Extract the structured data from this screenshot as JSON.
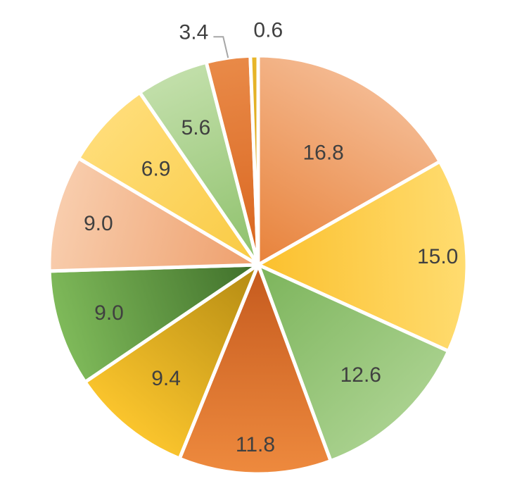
{
  "chart_data": {
    "type": "pie",
    "title": "",
    "legend": "none",
    "start_angle_deg": 0,
    "direction": "clockwise",
    "slices": [
      {
        "value": 16.8,
        "label": "16.8",
        "color_start": "#E8823A",
        "color_end": "#F4B990"
      },
      {
        "value": 15.0,
        "label": "15.0",
        "color_start": "#FBC02D",
        "color_end": "#FFDC70"
      },
      {
        "value": 12.6,
        "label": "12.6",
        "color_start": "#7CB45B",
        "color_end": "#A9D18E"
      },
      {
        "value": 11.8,
        "label": "11.8",
        "color_start": "#C55A1E",
        "color_end": "#EE8A3E"
      },
      {
        "value": 9.4,
        "label": "9.4",
        "color_start": "#B38A12",
        "color_end": "#FBC52D"
      },
      {
        "value": 9.0,
        "label": "9.0",
        "color_start": "#3F6F2A",
        "color_end": "#7FBA5A"
      },
      {
        "value": 9.0,
        "label": "9.0",
        "color_start": "#EE9F6C",
        "color_end": "#F8CDAD"
      },
      {
        "value": 6.9,
        "label": "6.9",
        "color_start": "#F9CA43",
        "color_end": "#FFDD78"
      },
      {
        "value": 5.6,
        "label": "5.6",
        "color_start": "#8DC06A",
        "color_end": "#C2DFAA"
      },
      {
        "value": 3.4,
        "label": "3.4",
        "color_start": "#D9651F",
        "color_end": "#E98A48"
      },
      {
        "value": 0.6,
        "label": "0.6",
        "color_start": "#D4A017",
        "color_end": "#E8B62A"
      }
    ]
  }
}
